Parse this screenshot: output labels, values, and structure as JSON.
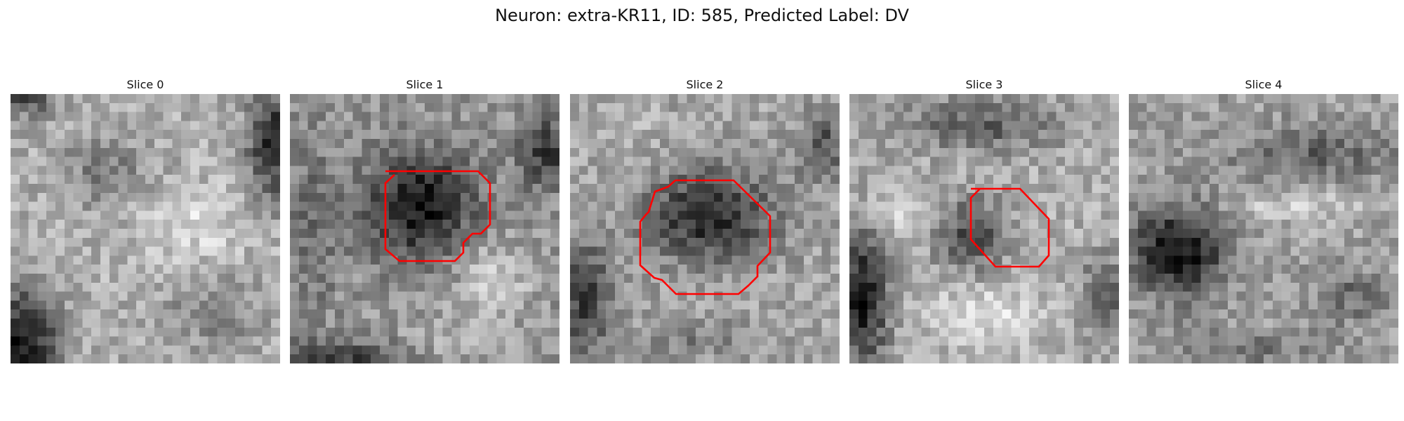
{
  "title": "Neuron: extra-KR11, ID: 585, Predicted Label: DV",
  "contour_color": "#ff0000",
  "colormap": "gray",
  "slices": [
    {
      "label": "Slice 0"
    },
    {
      "label": "Slice 1"
    },
    {
      "label": "Slice 2"
    },
    {
      "label": "Slice 3"
    },
    {
      "label": "Slice 4"
    }
  ]
}
